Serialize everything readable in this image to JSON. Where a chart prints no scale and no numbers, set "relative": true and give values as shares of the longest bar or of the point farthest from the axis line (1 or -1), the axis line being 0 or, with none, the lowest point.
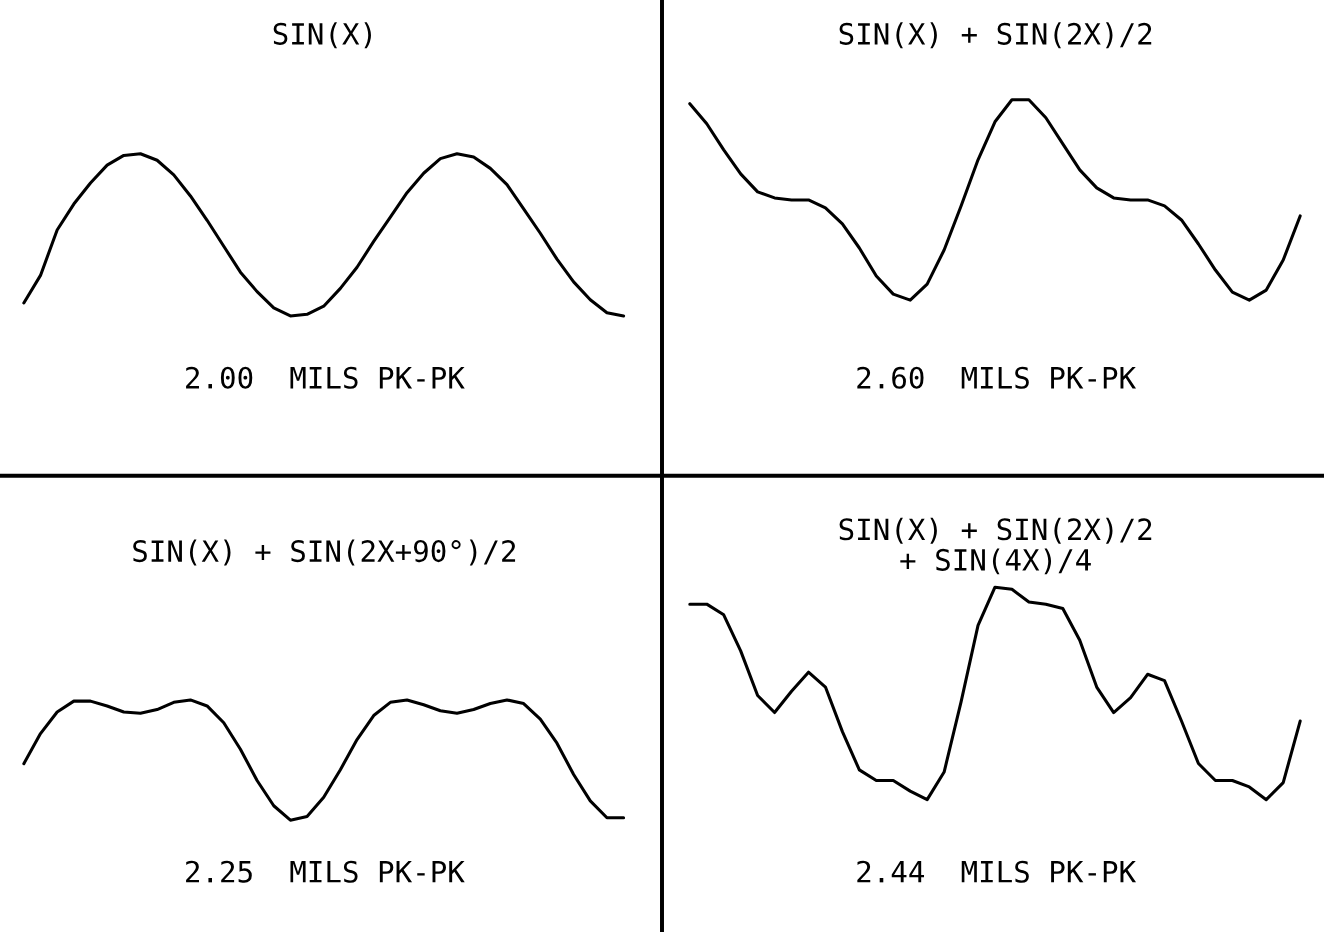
{
  "chart_data": [
    {
      "type": "line",
      "title": "SIN(X)",
      "relative": true,
      "categories": [
        null,
        null,
        null,
        null,
        null,
        null,
        null,
        null,
        null,
        null,
        null,
        null,
        null,
        null,
        null,
        null,
        null,
        null,
        null,
        null,
        null,
        null,
        null,
        null,
        null,
        null,
        null,
        null,
        null,
        null,
        null,
        null,
        null,
        null,
        null,
        null,
        null
      ],
      "series": [
        {
          "color": "#000000",
          "values": [
            0.08,
            0.25,
            0.53,
            0.69,
            0.82,
            0.93,
            0.99,
            1.0,
            0.96,
            0.87,
            0.74,
            0.59,
            0.43,
            0.27,
            0.15,
            0.05,
            0.0,
            0.01,
            0.06,
            0.17,
            0.3,
            0.46,
            0.61,
            0.76,
            0.88,
            0.97,
            1.0,
            0.98,
            0.91,
            0.81,
            0.66,
            0.51,
            0.35,
            0.21,
            0.1,
            0.02,
            0.0
          ]
        }
      ],
      "annotations": [
        "2.00  MILS PK-PK"
      ]
    },
    {
      "type": "line",
      "title": "SIN(X) + SIN(2X)/2",
      "relative": true,
      "categories": [
        null,
        null,
        null,
        null,
        null,
        null,
        null,
        null,
        null,
        null,
        null,
        null,
        null,
        null,
        null,
        null,
        null,
        null,
        null,
        null,
        null,
        null,
        null,
        null,
        null,
        null,
        null,
        null,
        null,
        null,
        null,
        null,
        null,
        null,
        null,
        null,
        null
      ],
      "series": [
        {
          "color": "#000000",
          "values": [
            0.98,
            0.88,
            0.75,
            0.63,
            0.54,
            0.51,
            0.5,
            0.5,
            0.46,
            0.38,
            0.26,
            0.12,
            0.03,
            0.0,
            0.08,
            0.25,
            0.47,
            0.7,
            0.89,
            1.0,
            1.0,
            0.91,
            0.78,
            0.65,
            0.56,
            0.51,
            0.5,
            0.5,
            0.47,
            0.4,
            0.28,
            0.15,
            0.04,
            0.0,
            0.05,
            0.2,
            0.42
          ]
        }
      ],
      "annotations": [
        "2.60  MILS PK-PK"
      ]
    },
    {
      "type": "line",
      "title": "SIN(X) + SIN(2X+90°)/2",
      "relative": true,
      "categories": [
        null,
        null,
        null,
        null,
        null,
        null,
        null,
        null,
        null,
        null,
        null,
        null,
        null,
        null,
        null,
        null,
        null,
        null,
        null,
        null,
        null,
        null,
        null,
        null,
        null,
        null,
        null,
        null,
        null,
        null,
        null,
        null,
        null,
        null,
        null,
        null,
        null
      ],
      "series": [
        {
          "color": "#000000",
          "values": [
            0.47,
            0.72,
            0.9,
            0.99,
            0.99,
            0.95,
            0.9,
            0.89,
            0.92,
            0.98,
            1.0,
            0.95,
            0.81,
            0.59,
            0.33,
            0.12,
            0.0,
            0.03,
            0.19,
            0.42,
            0.67,
            0.87,
            0.98,
            1.0,
            0.96,
            0.91,
            0.89,
            0.92,
            0.97,
            1.0,
            0.97,
            0.84,
            0.64,
            0.38,
            0.16,
            0.02,
            0.02
          ]
        }
      ],
      "annotations": [
        "2.25  MILS PK-PK"
      ]
    },
    {
      "type": "line",
      "title": "SIN(X) + SIN(2X)/2\n+ SIN(4X)/4",
      "relative": true,
      "categories": [
        null,
        null,
        null,
        null,
        null,
        null,
        null,
        null,
        null,
        null,
        null,
        null,
        null,
        null,
        null,
        null,
        null,
        null,
        null,
        null,
        null,
        null,
        null,
        null,
        null,
        null,
        null,
        null,
        null,
        null,
        null,
        null,
        null,
        null,
        null,
        null,
        null
      ],
      "series": [
        {
          "color": "#000000",
          "values": [
            0.92,
            0.92,
            0.87,
            0.7,
            0.49,
            0.41,
            0.51,
            0.6,
            0.53,
            0.32,
            0.14,
            0.09,
            0.09,
            0.04,
            0.0,
            0.13,
            0.46,
            0.82,
            1.0,
            0.99,
            0.93,
            0.92,
            0.9,
            0.75,
            0.53,
            0.41,
            0.48,
            0.59,
            0.56,
            0.37,
            0.17,
            0.09,
            0.09,
            0.06,
            0.0,
            0.08,
            0.37
          ]
        }
      ],
      "annotations": [
        "2.44  MILS PK-PK"
      ]
    }
  ]
}
